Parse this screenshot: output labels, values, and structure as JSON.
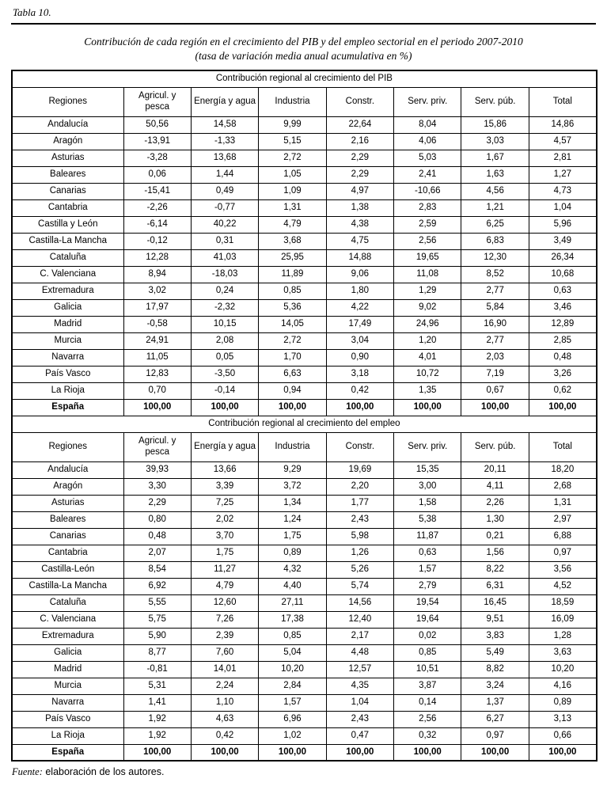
{
  "page": {
    "table_label": "Tabla 10.",
    "title_line1": "Contribución de cada región en el crecimiento del PIB y del empleo sectorial en el periodo 2007-2010",
    "title_line2": "(tasa de variación media anual acumulativa en %)",
    "source_label": "Fuente:",
    "source_text": " elaboración de los autores."
  },
  "table": {
    "columns": [
      "Regiones",
      "Agricul. y pesca",
      "Energía y agua",
      "Industria",
      "Constr.",
      "Serv. priv.",
      "Serv. púb.",
      "Total"
    ],
    "sections": [
      {
        "title": "Contribución regional al crecimiento del PIB",
        "rows": [
          {
            "region": "Andalucía",
            "values": [
              "50,56",
              "14,58",
              "9,99",
              "22,64",
              "8,04",
              "15,86",
              "14,86"
            ],
            "total_row": false
          },
          {
            "region": "Aragón",
            "values": [
              "-13,91",
              "-1,33",
              "5,15",
              "2,16",
              "4,06",
              "3,03",
              "4,57"
            ],
            "total_row": false
          },
          {
            "region": "Asturias",
            "values": [
              "-3,28",
              "13,68",
              "2,72",
              "2,29",
              "5,03",
              "1,67",
              "2,81"
            ],
            "total_row": false
          },
          {
            "region": "Baleares",
            "values": [
              "0,06",
              "1,44",
              "1,05",
              "2,29",
              "2,41",
              "1,63",
              "1,27"
            ],
            "total_row": false
          },
          {
            "region": "Canarias",
            "values": [
              "-15,41",
              "0,49",
              "1,09",
              "4,97",
              "-10,66",
              "4,56",
              "4,73"
            ],
            "total_row": false
          },
          {
            "region": "Cantabria",
            "values": [
              "-2,26",
              "-0,77",
              "1,31",
              "1,38",
              "2,83",
              "1,21",
              "1,04"
            ],
            "total_row": false
          },
          {
            "region": "Castilla y León",
            "values": [
              "-6,14",
              "40,22",
              "4,79",
              "4,38",
              "2,59",
              "6,25",
              "5,96"
            ],
            "total_row": false
          },
          {
            "region": "Castilla-La Mancha",
            "values": [
              "-0,12",
              "0,31",
              "3,68",
              "4,75",
              "2,56",
              "6,83",
              "3,49"
            ],
            "total_row": false
          },
          {
            "region": "Cataluña",
            "values": [
              "12,28",
              "41,03",
              "25,95",
              "14,88",
              "19,65",
              "12,30",
              "26,34"
            ],
            "total_row": false
          },
          {
            "region": "C. Valenciana",
            "values": [
              "8,94",
              "-18,03",
              "11,89",
              "9,06",
              "11,08",
              "8,52",
              "10,68"
            ],
            "total_row": false
          },
          {
            "region": "Extremadura",
            "values": [
              "3,02",
              "0,24",
              "0,85",
              "1,80",
              "1,29",
              "2,77",
              "0,63"
            ],
            "total_row": false
          },
          {
            "region": "Galicia",
            "values": [
              "17,97",
              "-2,32",
              "5,36",
              "4,22",
              "9,02",
              "5,84",
              "3,46"
            ],
            "total_row": false
          },
          {
            "region": "Madrid",
            "values": [
              "-0,58",
              "10,15",
              "14,05",
              "17,49",
              "24,96",
              "16,90",
              "12,89"
            ],
            "total_row": false
          },
          {
            "region": "Murcia",
            "values": [
              "24,91",
              "2,08",
              "2,72",
              "3,04",
              "1,20",
              "2,77",
              "2,85"
            ],
            "total_row": false
          },
          {
            "region": "Navarra",
            "values": [
              "11,05",
              "0,05",
              "1,70",
              "0,90",
              "4,01",
              "2,03",
              "0,48"
            ],
            "total_row": false
          },
          {
            "region": "País Vasco",
            "values": [
              "12,83",
              "-3,50",
              "6,63",
              "3,18",
              "10,72",
              "7,19",
              "3,26"
            ],
            "total_row": false
          },
          {
            "region": "La Rioja",
            "values": [
              "0,70",
              "-0,14",
              "0,94",
              "0,42",
              "1,35",
              "0,67",
              "0,62"
            ],
            "total_row": false
          },
          {
            "region": "España",
            "values": [
              "100,00",
              "100,00",
              "100,00",
              "100,00",
              "100,00",
              "100,00",
              "100,00"
            ],
            "total_row": true
          }
        ]
      },
      {
        "title": "Contribución regional al crecimiento del empleo",
        "rows": [
          {
            "region": "Andalucía",
            "values": [
              "39,93",
              "13,66",
              "9,29",
              "19,69",
              "15,35",
              "20,11",
              "18,20"
            ],
            "total_row": false
          },
          {
            "region": "Aragón",
            "values": [
              "3,30",
              "3,39",
              "3,72",
              "2,20",
              "3,00",
              "4,11",
              "2,68"
            ],
            "total_row": false
          },
          {
            "region": "Asturias",
            "values": [
              "2,29",
              "7,25",
              "1,34",
              "1,77",
              "1,58",
              "2,26",
              "1,31"
            ],
            "total_row": false
          },
          {
            "region": "Baleares",
            "values": [
              "0,80",
              "2,02",
              "1,24",
              "2,43",
              "5,38",
              "1,30",
              "2,97"
            ],
            "total_row": false
          },
          {
            "region": "Canarias",
            "values": [
              "0,48",
              "3,70",
              "1,75",
              "5,98",
              "11,87",
              "0,21",
              "6,88"
            ],
            "total_row": false
          },
          {
            "region": "Cantabria",
            "values": [
              "2,07",
              "1,75",
              "0,89",
              "1,26",
              "0,63",
              "1,56",
              "0,97"
            ],
            "total_row": false
          },
          {
            "region": "Castilla-León",
            "values": [
              "8,54",
              "11,27",
              "4,32",
              "5,26",
              "1,57",
              "8,22",
              "3,56"
            ],
            "total_row": false
          },
          {
            "region": "Castilla-La Mancha",
            "values": [
              "6,92",
              "4,79",
              "4,40",
              "5,74",
              "2,79",
              "6,31",
              "4,52"
            ],
            "total_row": false
          },
          {
            "region": "Cataluña",
            "values": [
              "5,55",
              "12,60",
              "27,11",
              "14,56",
              "19,54",
              "16,45",
              "18,59"
            ],
            "total_row": false
          },
          {
            "region": "C. Valenciana",
            "values": [
              "5,75",
              "7,26",
              "17,38",
              "12,40",
              "19,64",
              "9,51",
              "16,09"
            ],
            "total_row": false
          },
          {
            "region": "Extremadura",
            "values": [
              "5,90",
              "2,39",
              "0,85",
              "2,17",
              "0,02",
              "3,83",
              "1,28"
            ],
            "total_row": false
          },
          {
            "region": "Galicia",
            "values": [
              "8,77",
              "7,60",
              "5,04",
              "4,48",
              "0,85",
              "5,49",
              "3,63"
            ],
            "total_row": false
          },
          {
            "region": "Madrid",
            "values": [
              "-0,81",
              "14,01",
              "10,20",
              "12,57",
              "10,51",
              "8,82",
              "10,20"
            ],
            "total_row": false
          },
          {
            "region": "Murcia",
            "values": [
              "5,31",
              "2,24",
              "2,84",
              "4,35",
              "3,87",
              "3,24",
              "4,16"
            ],
            "total_row": false
          },
          {
            "region": "Navarra",
            "values": [
              "1,41",
              "1,10",
              "1,57",
              "1,04",
              "0,14",
              "1,37",
              "0,89"
            ],
            "total_row": false
          },
          {
            "region": "País Vasco",
            "values": [
              "1,92",
              "4,63",
              "6,96",
              "2,43",
              "2,56",
              "6,27",
              "3,13"
            ],
            "total_row": false
          },
          {
            "region": "La Rioja",
            "values": [
              "1,92",
              "0,42",
              "1,02",
              "0,47",
              "0,32",
              "0,97",
              "0,66"
            ],
            "total_row": false
          },
          {
            "region": "España",
            "values": [
              "100,00",
              "100,00",
              "100,00",
              "100,00",
              "100,00",
              "100,00",
              "100,00"
            ],
            "total_row": true
          }
        ]
      }
    ]
  }
}
